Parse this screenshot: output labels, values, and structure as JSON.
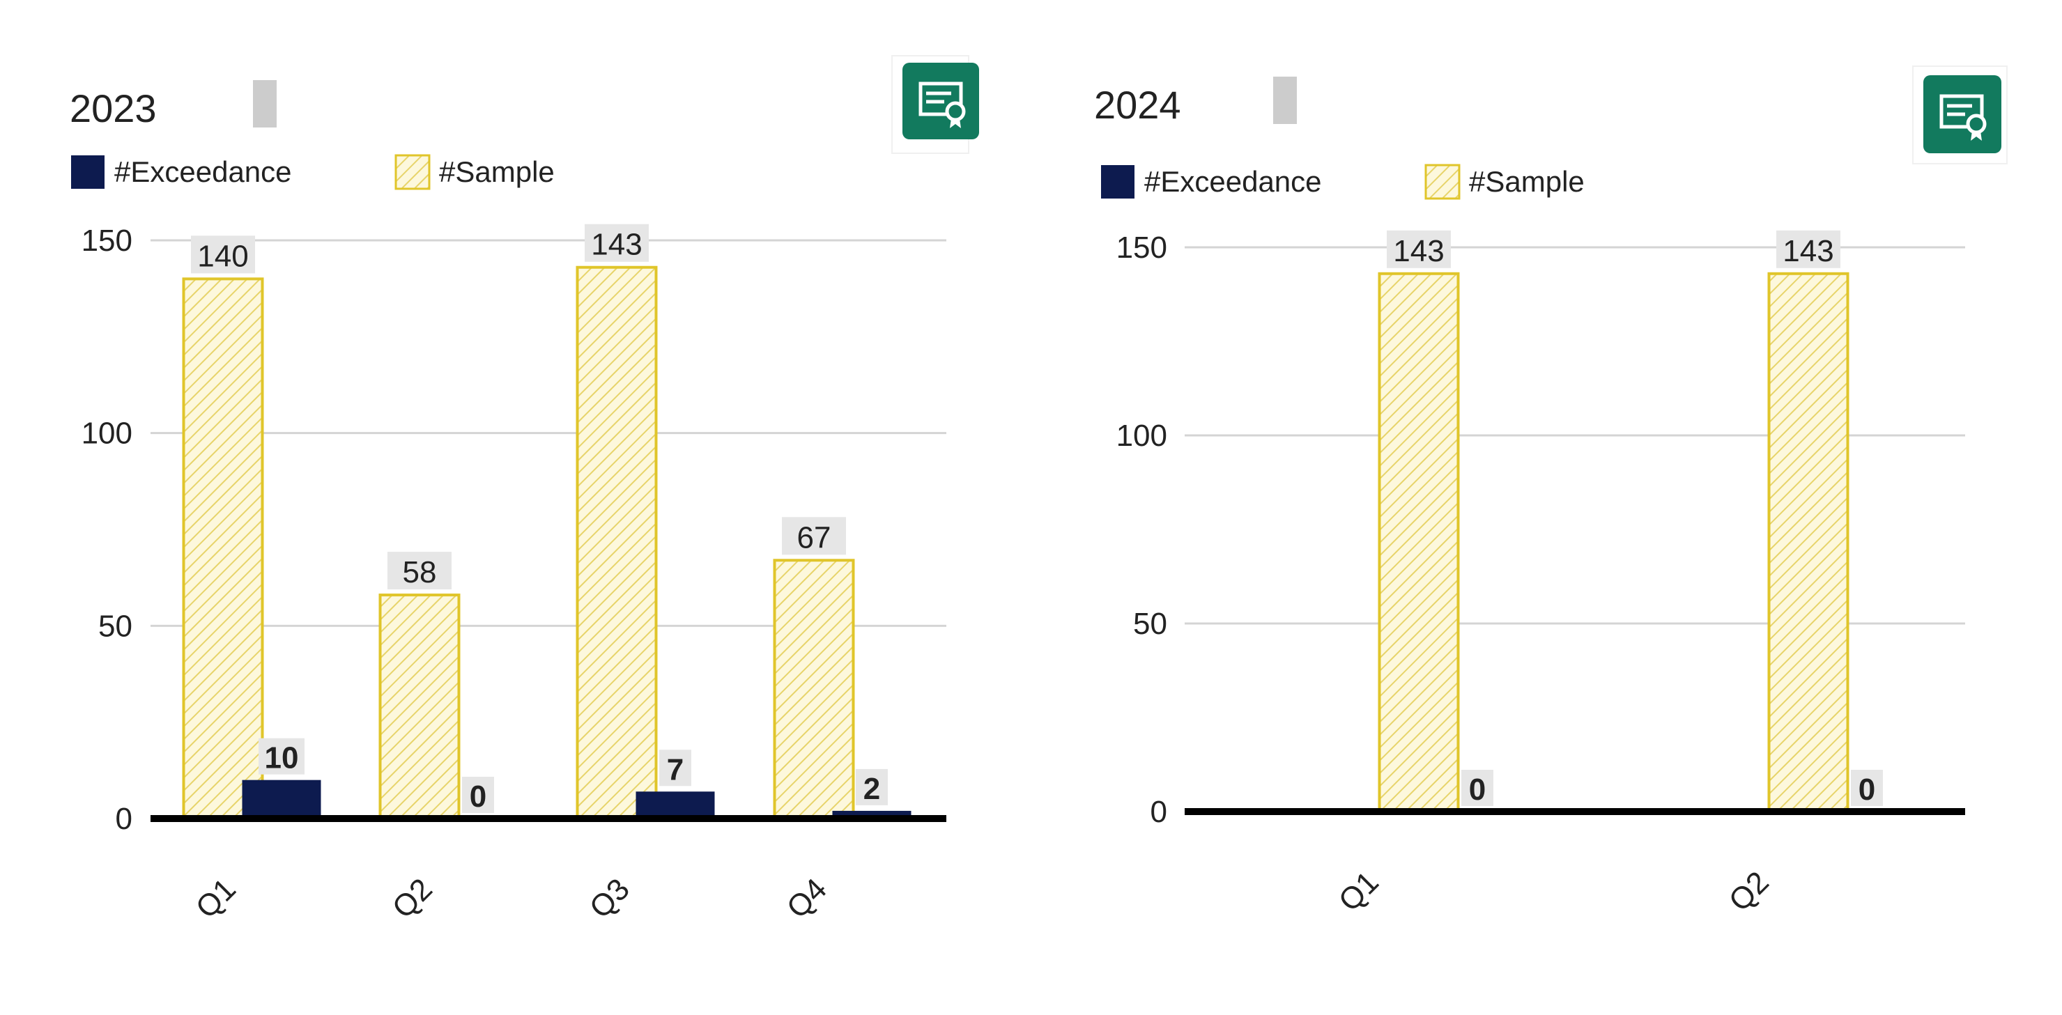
{
  "colors": {
    "exceedance": "#0d1b4f",
    "sample_stroke": "#e0c52a",
    "sample_hatch": "#e7d46a",
    "sample_fill": "#fdf8dc",
    "grid": "#d4d4d4",
    "baseline": "#000000",
    "label_bg": "#e6e6e6",
    "icon_bg": "#127a5e",
    "text": "#222222"
  },
  "chart_data": [
    {
      "type": "bar",
      "title": "2023",
      "legend": {
        "position": "top-left"
      },
      "categories": [
        "Q1",
        "Q2",
        "Q3",
        "Q4"
      ],
      "series": [
        {
          "name": "#Sample",
          "values": [
            140,
            58,
            143,
            67
          ]
        },
        {
          "name": "#Exceedance",
          "values": [
            10,
            0,
            7,
            2
          ]
        }
      ],
      "yticks": [
        0,
        50,
        100,
        150
      ],
      "ylim": [
        0,
        150
      ],
      "grid": true,
      "icon": "certificate-icon"
    },
    {
      "type": "bar",
      "title": "2024",
      "legend": {
        "position": "top-left"
      },
      "categories": [
        "Q1",
        "Q2"
      ],
      "series": [
        {
          "name": "#Sample",
          "values": [
            143,
            143
          ]
        },
        {
          "name": "#Exceedance",
          "values": [
            0,
            0
          ]
        }
      ],
      "yticks": [
        0,
        50,
        100,
        150
      ],
      "ylim": [
        0,
        150
      ],
      "grid": true,
      "icon": "certificate-icon"
    }
  ]
}
